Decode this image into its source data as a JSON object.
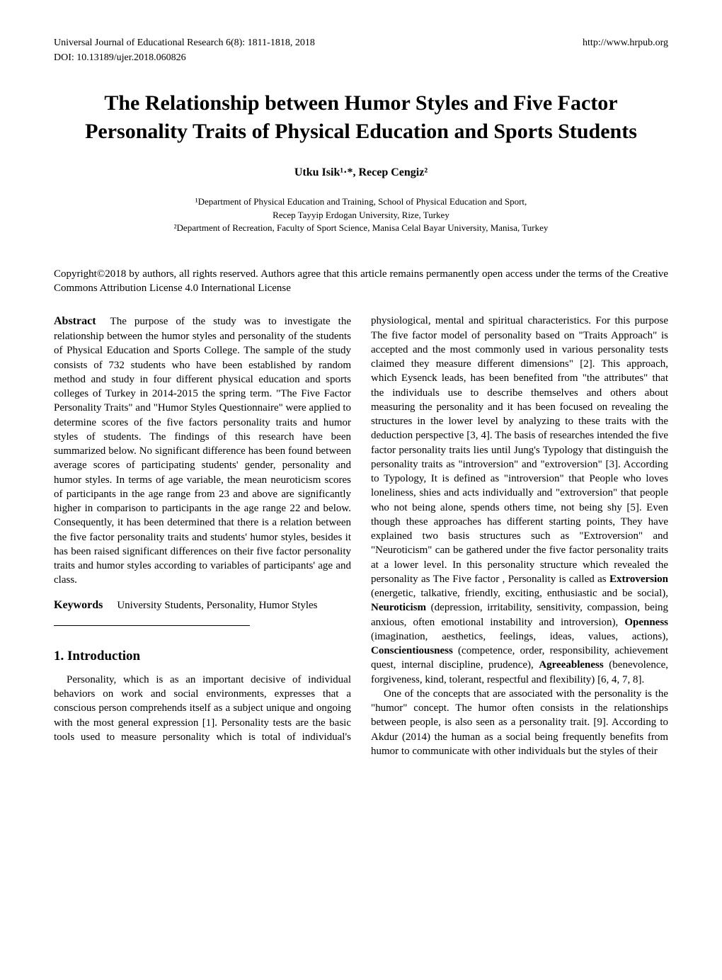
{
  "header": {
    "journal": "Universal Journal of Educational Research 6(8): 1811-1818, 2018",
    "url": "http://www.hrpub.org",
    "doi": "DOI: 10.13189/ujer.2018.060826"
  },
  "title": "The Relationship between Humor Styles and Five Factor Personality Traits of Physical Education and Sports Students",
  "authors": "Utku Isik¹·*, Recep Cengiz²",
  "affiliations": {
    "line1": "¹Department of Physical Education and Training, School of Physical Education and Sport,",
    "line2": "Recep Tayyip Erdogan University, Rize, Turkey",
    "line3": "²Department of Recreation, Faculty of Sport Science, Manisa Celal Bayar University, Manisa, Turkey"
  },
  "copyright": "Copyright©2018 by authors, all rights reserved. Authors agree that this article remains permanently open access under the terms of the Creative Commons Attribution License 4.0 International License",
  "abstract": {
    "label": "Abstract",
    "text": "The purpose of the study was to investigate the relationship between the humor styles and personality of the students of Physical Education and Sports College. The sample of the study consists of 732 students who have been established by random method and study in four different physical education and sports colleges of Turkey in 2014-2015 the spring term. \"The Five Factor Personality Traits\" and \"Humor Styles Questionnaire\" were applied to determine scores of the five factors personality traits and humor styles of students. The findings of this research have been summarized below. No significant difference has been found between average scores of participating students' gender, personality and humor styles. In terms of age variable, the mean neuroticism scores of participants in the age range from 23 and above are significantly higher in comparison to participants in the age range 22 and below. Consequently, it has been determined that there is a relation between the five factor personality traits and students' humor styles, besides it has been raised significant differences on their five factor personality traits and humor styles according to variables of participants' age and class."
  },
  "keywords": {
    "label": "Keywords",
    "text": "University Students, Personality, Humor Styles"
  },
  "section1": {
    "heading": "1. Introduction",
    "p1": "Personality, which is as an important decisive of individual behaviors on work and social environments, expresses that a conscious person comprehends itself as a subject unique and ongoing  with the most general expression [1]. Personality tests are the basic tools used to measure personality which is total of individual's physiological, mental and spiritual characteristics. For this purpose The five factor model of personality based on \"Traits Approach\" is accepted and the most commonly used in various personality tests claimed they measure different dimensions\" [2]. This approach, which Eysenck leads, has been benefited from \"the attributes\" that the individuals use to describe themselves and others about measuring the personality and it has been focused on revealing the structures in the lower level by analyzing to these traits with the deduction perspective [3, 4]. The basis of researches intended the five factor personality traits lies until Jung's Typology that distinguish the personality traits as \"introversion\" and \"extroversion\" [3]. According to Typology, It is defined as \"introversion\" that People who loves loneliness, shies and acts individually and \"extroversion\" that people who not being alone, spends others time, not being shy [5]. Even though these approaches has different starting points, They have explained  two basis structures such as \"Extroversion\" and \"Neuroticism\" can be gathered under the five factor personality traits at a lower level. In this personality structure which revealed the personality as The Five factor , Personality is called as ",
    "p1_tail": " [6, 4, 7, 8].",
    "bold_extroversion": "Extroversion",
    "t_extroversion": " (energetic, talkative, friendly, exciting, enthusiastic and be social), ",
    "bold_neuroticism": "Neuroticism",
    "t_neuroticism": " (depression, irritability, sensitivity, compassion, being anxious, often emotional instability and introversion), ",
    "bold_openness": "Openness",
    "t_openness": " (imagination, aesthetics, feelings, ideas, values, actions), ",
    "bold_conscientiousness": "Conscientiousness",
    "t_conscientiousness": " (competence, order, responsibility, achievement quest, internal discipline, prudence), ",
    "bold_agreeableness": "Agreeableness",
    "t_agreeableness": " (benevolence, forgiveness, kind, tolerant, respectful and flexibility)",
    "p2": "One of the concepts that are associated with the personality is the \"humor\" concept. The humor often consists in the relationships between people, is also seen as a personality trait. [9]. According to Akdur (2014) the human as a social being frequently benefits from humor to communicate with other individuals but the styles of their"
  }
}
